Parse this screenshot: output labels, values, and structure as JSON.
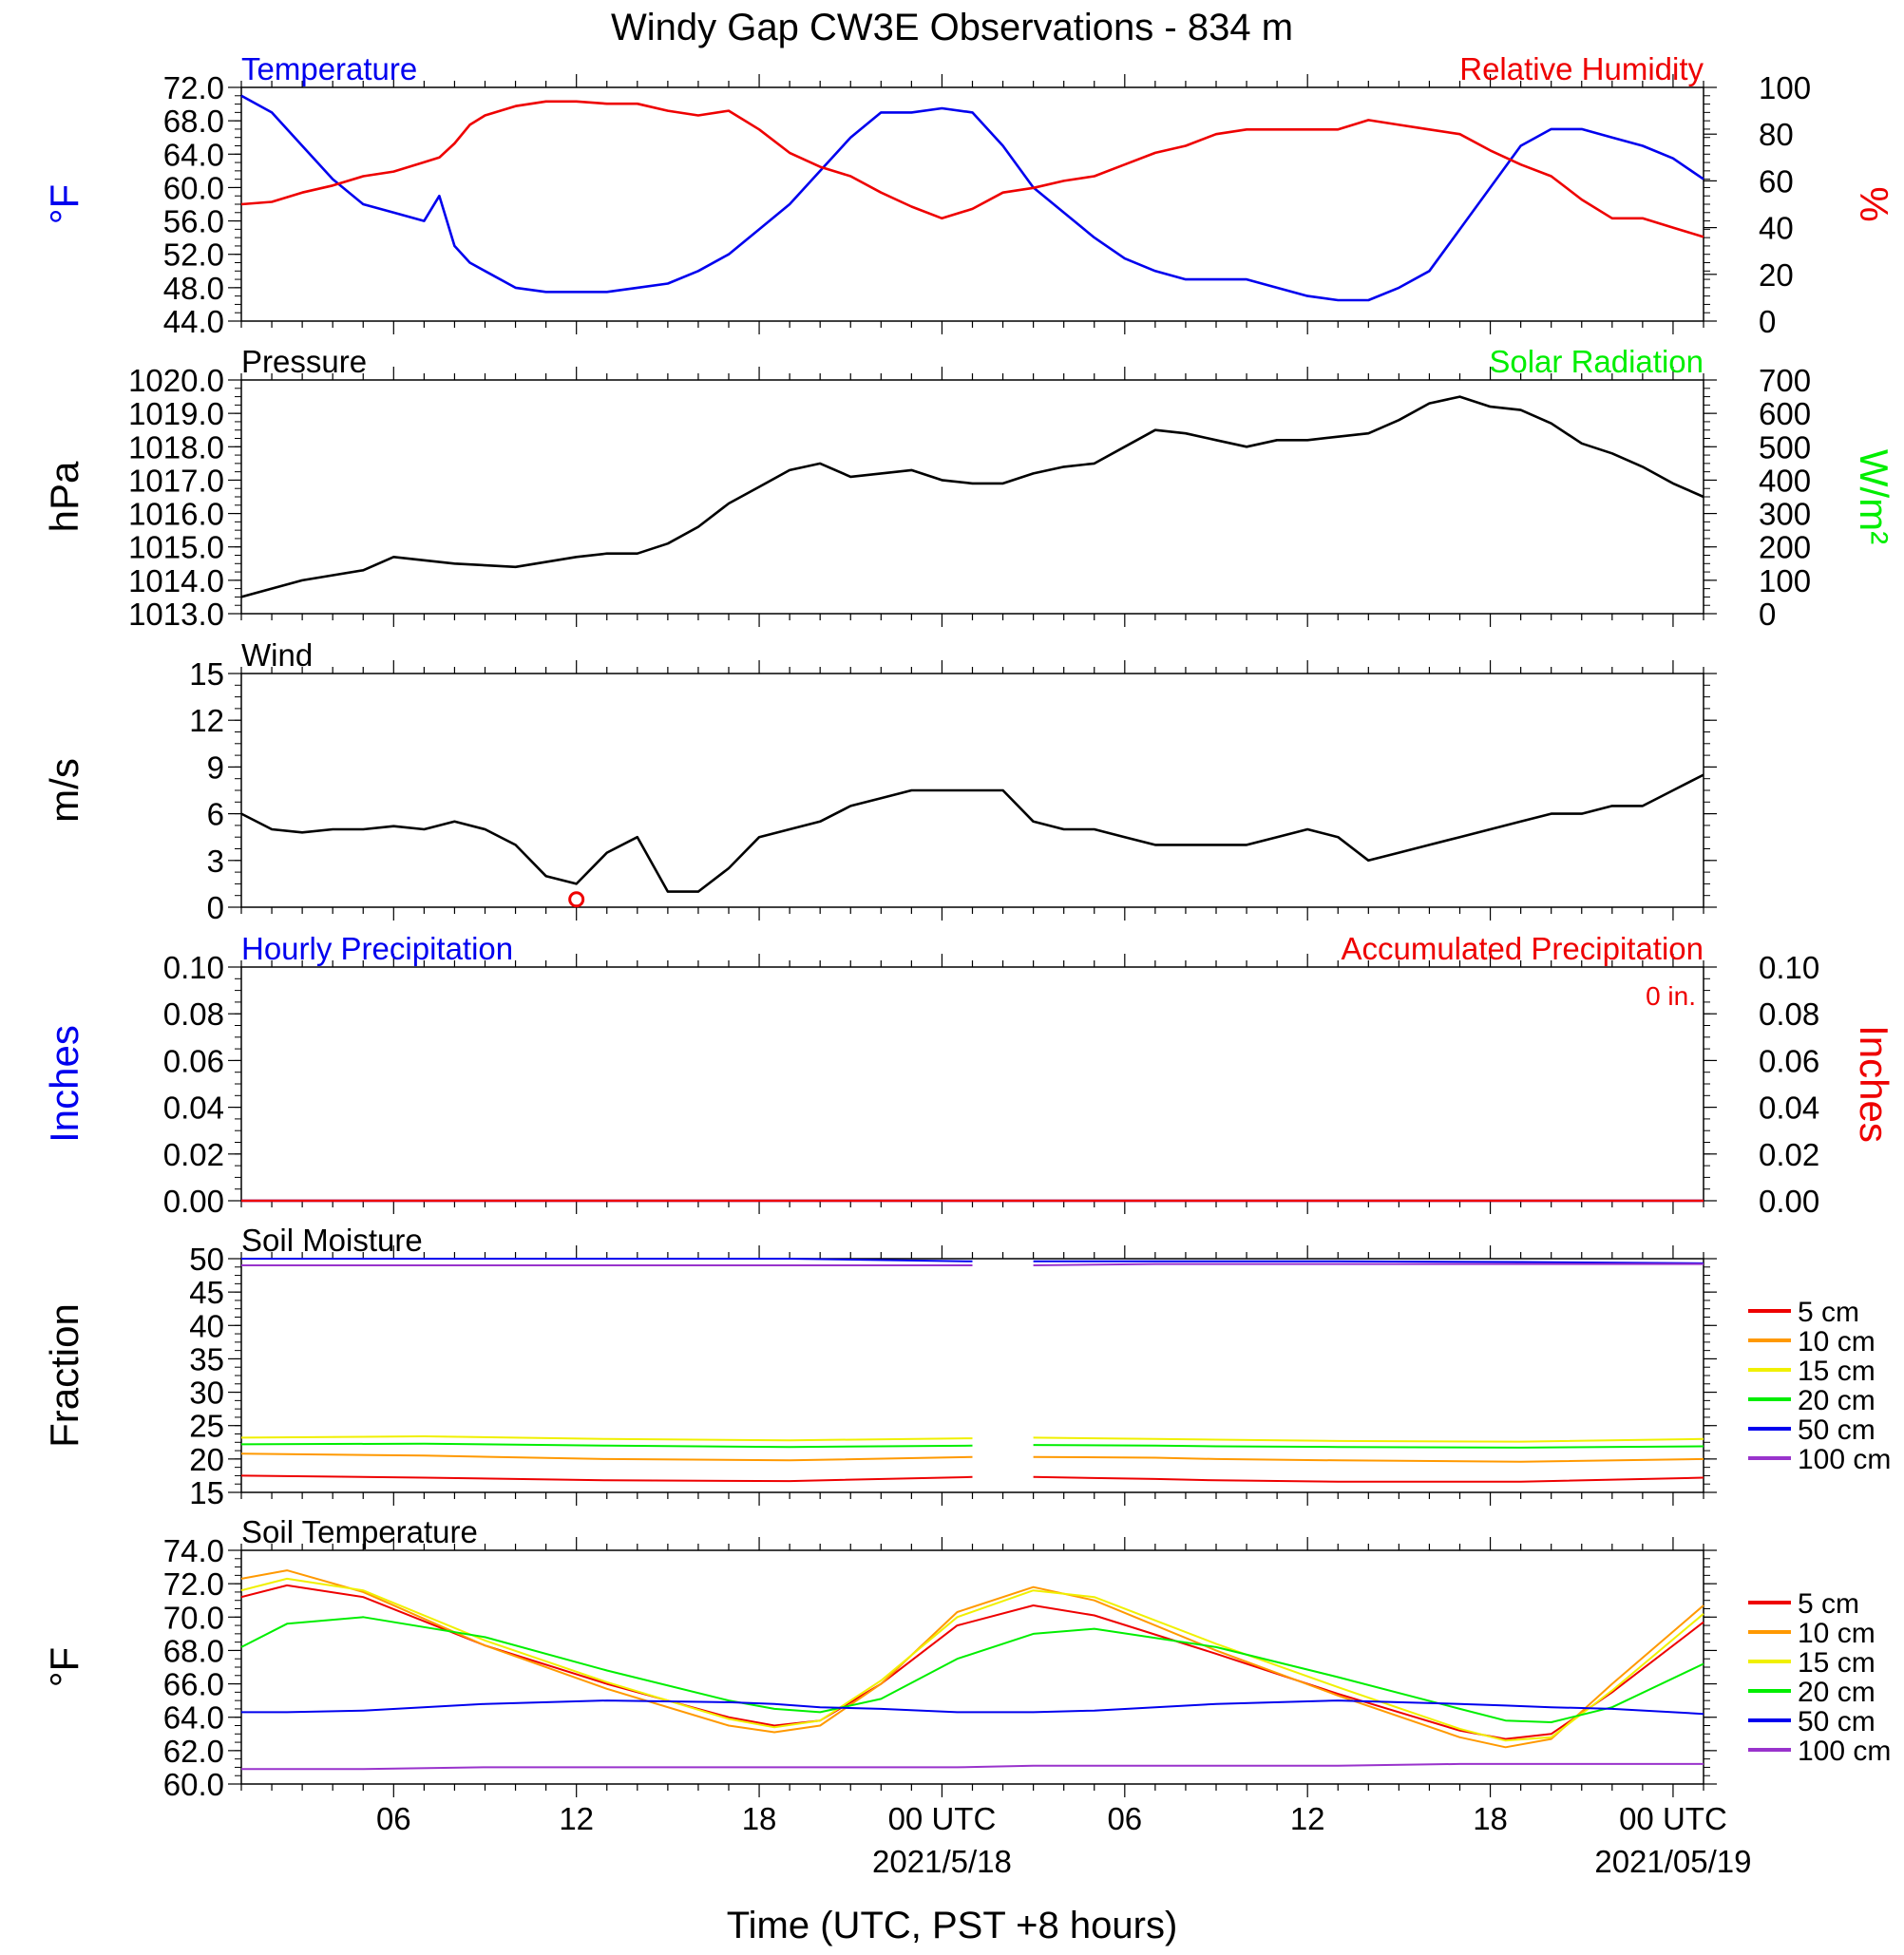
{
  "title": "Windy Gap CW3E Observations - 834 m",
  "colors": {
    "blue": "#0000ee",
    "red": "#ee0000",
    "green": "#00ee00",
    "black": "#000000",
    "orange": "#ff9900",
    "yellow": "#f0f000",
    "purple": "#9933cc"
  },
  "x_axis": {
    "label": "Time (UTC, PST +8 hours)",
    "tick_labels": [
      "06",
      "12",
      "18",
      "00 UTC",
      "06",
      "12",
      "18",
      "00 UTC"
    ],
    "dates": [
      "2021/5/18",
      "2021/05/19"
    ],
    "range_hours": [
      0,
      48
    ],
    "start": "2021/5/17 01 UTC",
    "end": "2021/5/19 01 UTC"
  },
  "chart_data": [
    {
      "type": "line",
      "title": "",
      "left_title": "Temperature",
      "right_title": "Relative Humidity",
      "ylabel": "oF",
      "y2label": "%",
      "ylim": [
        44,
        72
      ],
      "y2lim": [
        0,
        100
      ],
      "yticks": [
        "72.0",
        "68.0",
        "64.0",
        "60.0",
        "56.0",
        "52.0",
        "48.0",
        "44.0"
      ],
      "y2ticks": [
        "100",
        "80",
        "60",
        "40",
        "20",
        "0"
      ],
      "x_hours": [
        0,
        1,
        2,
        3,
        4,
        5,
        6,
        6.5,
        7,
        7.5,
        8,
        9,
        10,
        11,
        12,
        13,
        14,
        15,
        16,
        17,
        18,
        19,
        20,
        21,
        22,
        23,
        24,
        25,
        26,
        27,
        28,
        29,
        30,
        31,
        32,
        33,
        34,
        35,
        36,
        37,
        38,
        39,
        40,
        41,
        42,
        43,
        44,
        45,
        46,
        47,
        48
      ],
      "series": [
        {
          "name": "Temperature",
          "axis": "left",
          "color": "#0000ee",
          "values": [
            71,
            69,
            65,
            61,
            58,
            57,
            56,
            59,
            53,
            51,
            50,
            48,
            47.5,
            47.5,
            47.5,
            48,
            48.5,
            50,
            52,
            55,
            58,
            62,
            66,
            69,
            69,
            69.5,
            69,
            65,
            60,
            57,
            54,
            51.5,
            50,
            49,
            49,
            49,
            48,
            47,
            46.5,
            46.5,
            48,
            50,
            55,
            60,
            65,
            67,
            67,
            66,
            65,
            63.5,
            61
          ]
        },
        {
          "name": "Relative Humidity",
          "axis": "right",
          "color": "#ee0000",
          "values": [
            50,
            51,
            55,
            58,
            62,
            64,
            68,
            70,
            76,
            84,
            88,
            92,
            94,
            94,
            93,
            93,
            90,
            88,
            90,
            82,
            72,
            66,
            62,
            55,
            49,
            44,
            48,
            55,
            57,
            60,
            62,
            67,
            72,
            75,
            80,
            82,
            82,
            82,
            82,
            86,
            84,
            82,
            80,
            73,
            67,
            62,
            52,
            44,
            44,
            40,
            36
          ]
        }
      ]
    },
    {
      "type": "line",
      "title": "",
      "left_title": "Pressure",
      "right_title": "Solar Radiation",
      "ylabel": "hPa",
      "y2label": "W/m2",
      "ylim": [
        1013,
        1020
      ],
      "y2lim": [
        0,
        700
      ],
      "yticks": [
        "1020.0",
        "1019.0",
        "1018.0",
        "1017.0",
        "1016.0",
        "1015.0",
        "1014.0",
        "1013.0"
      ],
      "y2ticks": [
        "700",
        "600",
        "500",
        "400",
        "300",
        "200",
        "100",
        "0"
      ],
      "x_hours": [
        0,
        2,
        4,
        5,
        7,
        9,
        11,
        12,
        13,
        14,
        15,
        16,
        17,
        18,
        19,
        20,
        21,
        22,
        23,
        24,
        25,
        26,
        27,
        28,
        29,
        30,
        31,
        32,
        33,
        34,
        35,
        36,
        37,
        38,
        39,
        40,
        41,
        42,
        43,
        44,
        45,
        46,
        47,
        48
      ],
      "series": [
        {
          "name": "Pressure",
          "axis": "left",
          "color": "#000000",
          "values": [
            1013.5,
            1014,
            1014.3,
            1014.7,
            1014.5,
            1014.4,
            1014.7,
            1014.8,
            1014.8,
            1015.1,
            1015.6,
            1016.3,
            1016.8,
            1017.3,
            1017.5,
            1017.1,
            1017.2,
            1017.3,
            1017,
            1016.9,
            1016.9,
            1017.2,
            1017.4,
            1017.5,
            1018,
            1018.5,
            1018.4,
            1018.2,
            1018,
            1018.2,
            1018.2,
            1018.3,
            1018.4,
            1018.8,
            1019.3,
            1019.5,
            1019.2,
            1019.1,
            1018.7,
            1018.1,
            1017.8,
            1017.4,
            1016.9,
            1016.5
          ]
        }
      ]
    },
    {
      "type": "line",
      "title": "",
      "left_title": "Wind",
      "ylabel": "m/s",
      "ylim": [
        0,
        15
      ],
      "yticks": [
        "15",
        "12",
        "9",
        "6",
        "3",
        "0"
      ],
      "x_hours": [
        0,
        1,
        2,
        3,
        4,
        5,
        6,
        7,
        8,
        9,
        10,
        11,
        12,
        13,
        14,
        15,
        16,
        17,
        18,
        19,
        20,
        21,
        22,
        23,
        24,
        25,
        26,
        27,
        28,
        29,
        30,
        31,
        32,
        33,
        34,
        35,
        36,
        37,
        38,
        39,
        40,
        41,
        42,
        43,
        44,
        45,
        46,
        47,
        48
      ],
      "calm_marker_hour": 11,
      "series": [
        {
          "name": "Wind speed",
          "color": "#000000",
          "values": [
            6,
            5,
            4.8,
            5,
            5,
            5.2,
            5,
            5.5,
            5,
            4,
            2,
            1.5,
            3.5,
            4.5,
            1,
            1,
            2.5,
            4.5,
            5,
            5.5,
            6.5,
            7,
            7.5,
            7.5,
            7.5,
            7.5,
            5.5,
            5,
            5,
            4.5,
            4,
            4,
            4,
            4,
            4.5,
            5,
            4.5,
            3,
            3.5,
            4,
            4.5,
            5,
            5.5,
            6,
            6,
            6.5,
            6.5,
            7.5,
            8.5
          ]
        }
      ]
    },
    {
      "type": "line",
      "title": "",
      "left_title": "Hourly Precipitation",
      "right_title": "Accumulated Precipitation",
      "accum_total": "0 in.",
      "ylabel": "Inches",
      "y2label": "Inches",
      "ylim": [
        0,
        0.1
      ],
      "y2lim": [
        0,
        0.1
      ],
      "yticks": [
        "0.10",
        "0.08",
        "0.06",
        "0.04",
        "0.02",
        "0.00"
      ],
      "y2ticks": [
        "0.10",
        "0.08",
        "0.06",
        "0.04",
        "0.02",
        "0.00"
      ],
      "x_hours": [
        0,
        48
      ],
      "series": [
        {
          "name": "Hourly Precipitation",
          "color": "#0000ee",
          "values": [
            0,
            0
          ]
        },
        {
          "name": "Accumulated Precipitation",
          "color": "#ee0000",
          "values": [
            0,
            0
          ]
        }
      ]
    },
    {
      "type": "line",
      "title": "",
      "left_title": "Soil Moisture",
      "ylabel": "Fraction",
      "ylim": [
        15,
        50
      ],
      "yticks": [
        "50",
        "45",
        "40",
        "35",
        "30",
        "25",
        "20",
        "15"
      ],
      "legend": "right",
      "x_hours": [
        0,
        6,
        12,
        18,
        24,
        26,
        30,
        32,
        36,
        42,
        48
      ],
      "gaps_hours": [
        [
          24,
          26
        ],
        [
          32,
          32.5
        ]
      ],
      "series": [
        {
          "name": "5 cm",
          "color": "#ee0000",
          "values": [
            17.5,
            17.2,
            16.8,
            16.7,
            17.3,
            17.3,
            17,
            16.8,
            16.6,
            16.6,
            17.2
          ]
        },
        {
          "name": "10 cm",
          "color": "#ff9900",
          "values": [
            20.8,
            20.5,
            20,
            19.8,
            20.3,
            20.3,
            20.2,
            20,
            19.8,
            19.6,
            20
          ]
        },
        {
          "name": "15 cm",
          "color": "#f0f000",
          "values": [
            23.2,
            23.4,
            23,
            22.8,
            23.1,
            23.2,
            23,
            22.9,
            22.7,
            22.6,
            23
          ]
        },
        {
          "name": "20 cm",
          "color": "#00ee00",
          "values": [
            22.2,
            22.3,
            22,
            21.8,
            22,
            22.1,
            22,
            21.9,
            21.8,
            21.7,
            21.9
          ]
        },
        {
          "name": "50 cm",
          "color": "#0000ee",
          "values": [
            50,
            50,
            50,
            50,
            49.6,
            49.6,
            49.6,
            49.6,
            49.6,
            49.5,
            49.3
          ]
        },
        {
          "name": "100 cm",
          "color": "#9933cc",
          "values": [
            49,
            49,
            49,
            49,
            49,
            49,
            49.2,
            49.2,
            49.2,
            49.2,
            49.2
          ]
        }
      ]
    },
    {
      "type": "line",
      "title": "",
      "left_title": "Soil Temperature",
      "ylabel": "oF",
      "ylim": [
        60,
        74
      ],
      "yticks": [
        "74.0",
        "72.0",
        "70.0",
        "68.0",
        "66.0",
        "64.0",
        "62.0",
        "60.0"
      ],
      "legend": "right",
      "x_hours": [
        0,
        1.5,
        4,
        8,
        12,
        16,
        17.5,
        19,
        21,
        23.5,
        26,
        28,
        32,
        36,
        40,
        41.5,
        43,
        45,
        48
      ],
      "series": [
        {
          "name": "5 cm",
          "color": "#ee0000",
          "values": [
            71.2,
            71.9,
            71.2,
            68.3,
            66,
            64,
            63.5,
            63.8,
            66,
            69.5,
            70.7,
            70.1,
            67.8,
            65.4,
            63.2,
            62.7,
            63,
            65.5,
            69.7
          ]
        },
        {
          "name": "10 cm",
          "color": "#ff9900",
          "values": [
            72.3,
            72.8,
            71.5,
            68.3,
            65.7,
            63.5,
            63.1,
            63.5,
            66,
            70.3,
            71.8,
            71,
            68,
            65.3,
            62.8,
            62.2,
            62.7,
            66,
            70.7
          ]
        },
        {
          "name": "15 cm",
          "color": "#f0f000",
          "values": [
            71.6,
            72.3,
            71.6,
            68.6,
            66.1,
            63.9,
            63.4,
            63.8,
            66.2,
            70,
            71.6,
            71.2,
            68.4,
            65.8,
            63.3,
            62.6,
            62.8,
            65.6,
            70.2
          ]
        },
        {
          "name": "20 cm",
          "color": "#00ee00",
          "values": [
            68.2,
            69.6,
            70,
            68.8,
            66.8,
            65,
            64.5,
            64.3,
            65.1,
            67.5,
            69,
            69.3,
            68.2,
            66.4,
            64.5,
            63.8,
            63.7,
            64.6,
            67.2
          ]
        },
        {
          "name": "50 cm",
          "color": "#0000ee",
          "values": [
            64.3,
            64.3,
            64.4,
            64.8,
            65,
            64.9,
            64.8,
            64.6,
            64.5,
            64.3,
            64.3,
            64.4,
            64.8,
            65,
            64.8,
            64.7,
            64.6,
            64.5,
            64.2
          ]
        },
        {
          "name": "100 cm",
          "color": "#9933cc",
          "values": [
            60.9,
            60.9,
            60.9,
            61,
            61,
            61,
            61,
            61,
            61,
            61,
            61.1,
            61.1,
            61.1,
            61.1,
            61.2,
            61.2,
            61.2,
            61.2,
            61.2
          ]
        }
      ]
    }
  ]
}
